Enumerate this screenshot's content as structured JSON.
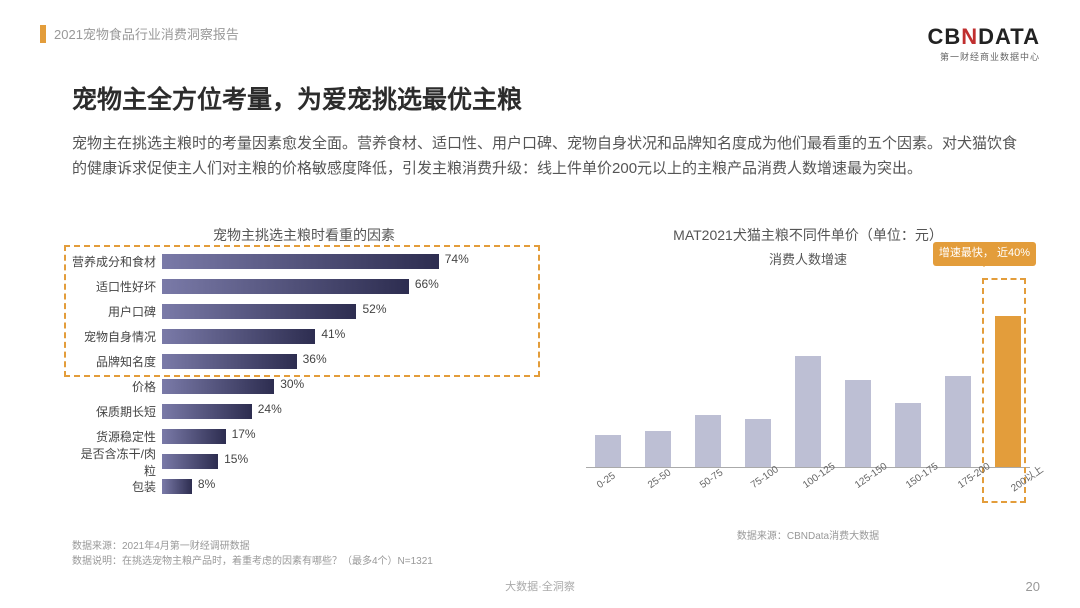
{
  "header": {
    "report_label": "2021宠物食品行业消费洞察报告",
    "logo_main_a": "CB",
    "logo_main_b": "N",
    "logo_main_c": "DATA",
    "logo_sub": "第一财经商业数据中心"
  },
  "title": "宠物主全方位考量，为爱宠挑选最优主粮",
  "desc": "宠物主在挑选主粮时的考量因素愈发全面。营养食材、适口性、用户口碑、宠物自身状况和品牌知名度成为他们最看重的五个因素。对犬猫饮食的健康诉求促使主人们对主粮的价格敏感度降低，引发主粮消费升级：线上件单价200元以上的主粮产品消费人数增速最为突出。",
  "left_chart": {
    "title": "宠物主挑选主粮时看重的因素",
    "type": "bar-horizontal",
    "bar_gradient_from": "#7a7aa8",
    "bar_gradient_to": "#2d2d50",
    "highlight_border": "#e39d3b",
    "label_fontsize": 12,
    "value_fontsize": 12,
    "xmax": 100,
    "rows": [
      {
        "label": "营养成分和食材",
        "value": 74,
        "display": "74%",
        "highlighted": true
      },
      {
        "label": "适口性好坏",
        "value": 66,
        "display": "66%",
        "highlighted": true
      },
      {
        "label": "用户口碑",
        "value": 52,
        "display": "52%",
        "highlighted": true
      },
      {
        "label": "宠物自身情况",
        "value": 41,
        "display": "41%",
        "highlighted": true
      },
      {
        "label": "品牌知名度",
        "value": 36,
        "display": "36%",
        "highlighted": true
      },
      {
        "label": "价格",
        "value": 30,
        "display": "30%",
        "highlighted": false
      },
      {
        "label": "保质期长短",
        "value": 24,
        "display": "24%",
        "highlighted": false
      },
      {
        "label": "货源稳定性",
        "value": 17,
        "display": "17%",
        "highlighted": false
      },
      {
        "label": "是否含冻干/肉粒",
        "value": 15,
        "display": "15%",
        "highlighted": false
      },
      {
        "label": "包装",
        "value": 8,
        "display": "8%",
        "highlighted": false
      }
    ],
    "source1": "数据来源：2021年4月第一财经调研数据",
    "source2": "数据说明：在挑选宠物主粮产品时，着重考虑的因素有哪些？（最多4个）N=1321"
  },
  "right_chart": {
    "title": "MAT2021犬猫主粮不同件单价（单位：元）",
    "subtitle": "消费人数增速",
    "type": "bar-vertical",
    "bar_color": "#bdbfd4",
    "highlight_color": "#e39d3b",
    "highlight_border": "#e39d3b",
    "ymax": 40,
    "callout": "增速最快，\n近40%",
    "categories": [
      "0-25",
      "25-50",
      "50-75",
      "75-100",
      "100-125",
      "125-150",
      "150-175",
      "175-200",
      "200以上"
    ],
    "values": [
      8,
      9,
      13,
      12,
      28,
      22,
      16,
      23,
      38
    ],
    "highlight_index": 8,
    "source": "数据来源：CBNData消费大数据"
  },
  "footer": {
    "center": "大数据·全洞察",
    "page": "20"
  },
  "colors": {
    "accent_orange": "#e39d3b",
    "text_muted": "#999999",
    "bg": "#ffffff"
  }
}
